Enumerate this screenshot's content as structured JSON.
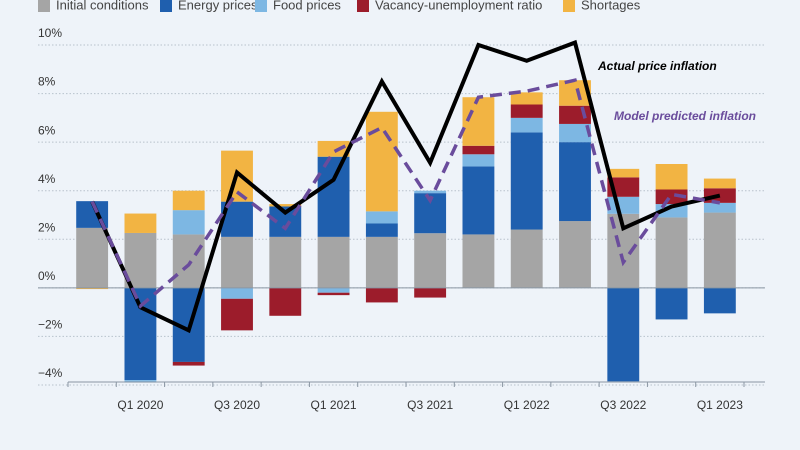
{
  "chart_data": {
    "type": "bar",
    "categories": [
      null,
      "Q1 2020",
      null,
      "Q3 2020",
      null,
      "Q1 2021",
      null,
      "Q3 2021",
      null,
      "Q1 2022",
      null,
      "Q3 2022",
      null,
      "Q1 2023"
    ],
    "series": [
      {
        "name": "Initial conditions",
        "color": "#a5a5a5",
        "values": [
          2.47,
          2.26,
          2.2,
          2.1,
          2.1,
          2.1,
          2.1,
          2.25,
          2.2,
          2.4,
          2.75,
          3.05,
          2.9,
          3.1
        ]
      },
      {
        "name": "Energy prices",
        "color": "#1f5fae",
        "values": [
          1.1,
          -3.8,
          -3.05,
          1.45,
          1.25,
          3.3,
          0.55,
          1.65,
          2.8,
          4.0,
          3.25,
          -3.85,
          -1.3,
          -1.05
        ]
      },
      {
        "name": "Food prices",
        "color": "#7db7e3",
        "values": [
          0,
          -0.1,
          1.0,
          -0.45,
          0,
          -0.2,
          0.5,
          0.1,
          0.5,
          0.6,
          0.75,
          0.7,
          0.55,
          0.4
        ]
      },
      {
        "name": "Vacancy-unemployment ratio",
        "color": "#9c1c2b",
        "values": [
          0,
          0,
          -0.15,
          -1.3,
          -1.15,
          -0.1,
          -0.6,
          -0.4,
          0.35,
          0.55,
          0.75,
          0.8,
          0.6,
          0.6
        ]
      },
      {
        "name": "Shortages",
        "color": "#f2b443",
        "values": [
          -0.05,
          0.8,
          0.8,
          2.1,
          0.1,
          0.65,
          4.1,
          0,
          2.0,
          0.5,
          1.05,
          0.35,
          1.05,
          0.4
        ]
      }
    ],
    "lines": [
      {
        "name": "Actual price inflation",
        "color": "#000000",
        "dashed": false,
        "values": [
          3.55,
          -0.8,
          -1.75,
          4.75,
          3.1,
          4.45,
          8.5,
          5.15,
          10.0,
          9.35,
          10.1,
          2.45,
          3.35,
          3.8
        ]
      },
      {
        "name": "Model predicted inflation",
        "color": "#6a4c9c",
        "dashed": true,
        "values": [
          3.55,
          -0.75,
          0.95,
          3.95,
          2.45,
          5.6,
          6.6,
          3.6,
          7.85,
          8.1,
          8.55,
          1.05,
          3.85,
          3.5
        ]
      }
    ],
    "ylim": [
      -4,
      10
    ],
    "yticks": [
      {
        "value": -4,
        "label": "−4%"
      },
      {
        "value": -2,
        "label": "−2%"
      },
      {
        "value": 0,
        "label": "0%"
      },
      {
        "value": 2,
        "label": "2%"
      },
      {
        "value": 4,
        "label": "4%"
      },
      {
        "value": 6,
        "label": "6%"
      },
      {
        "value": 8,
        "label": "8%"
      },
      {
        "value": 10,
        "label": "10%"
      }
    ],
    "grid": true
  }
}
